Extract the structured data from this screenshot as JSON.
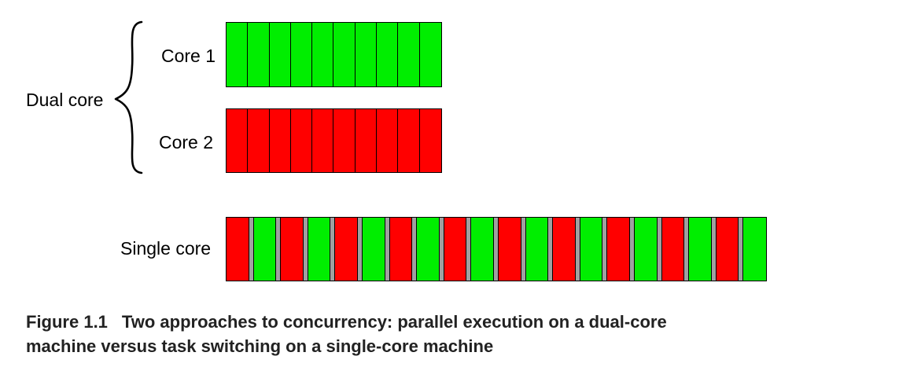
{
  "colors": {
    "task_a": "#ff0000",
    "task_b": "#00ee00",
    "switch": "#a0a0a0",
    "outline": "#000000"
  },
  "labels": {
    "dual_core": "Dual core",
    "core1": "Core 1",
    "core2": "Core 2",
    "single_core": "Single core"
  },
  "dual_core": {
    "core1": {
      "task": "task_b",
      "slices": 10
    },
    "core2": {
      "task": "task_a",
      "slices": 10
    }
  },
  "single_core": {
    "sequence": [
      "task_a",
      "task_b",
      "task_a",
      "task_b",
      "task_a",
      "task_b",
      "task_a",
      "task_b",
      "task_a",
      "task_b",
      "task_a",
      "task_b",
      "task_a",
      "task_b",
      "task_a",
      "task_b",
      "task_a",
      "task_b",
      "task_a",
      "task_b"
    ],
    "switch_between_slices": true
  },
  "caption": {
    "number": "Figure 1.1",
    "text_line1": "Two approaches to concurrency: parallel execution on a dual-core",
    "text_line2": "machine versus task switching on a single-core machine"
  }
}
